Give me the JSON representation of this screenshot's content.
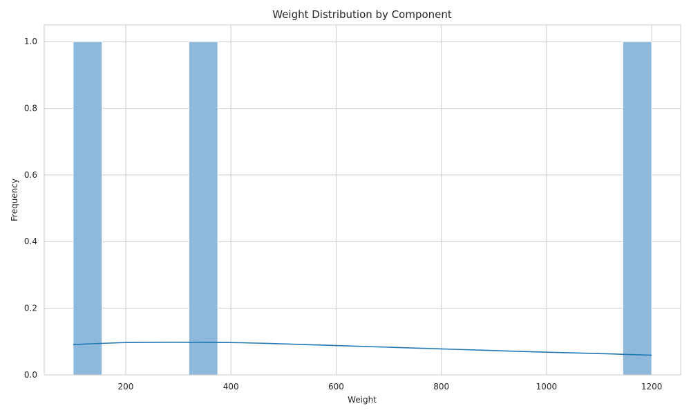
{
  "chart_data": {
    "type": "bar",
    "title": "Weight Distribution by Component",
    "xlabel": "Weight",
    "ylabel": "Frequency",
    "xlim": [
      45,
      1255
    ],
    "ylim": [
      0,
      1.05
    ],
    "x_ticks": [
      200,
      400,
      600,
      800,
      1000,
      1200
    ],
    "y_ticks": [
      0.0,
      0.2,
      0.4,
      0.6,
      0.8,
      1.0
    ],
    "x_tick_labels": [
      "200",
      "400",
      "600",
      "800",
      "1000",
      "1200"
    ],
    "y_tick_labels": [
      "0.0",
      "0.2",
      "0.4",
      "0.6",
      "0.8",
      "1.0"
    ],
    "grid": true,
    "histogram": {
      "bins": [
        {
          "x0": 100,
          "x1": 155,
          "count": 1
        },
        {
          "x0": 320,
          "x1": 375,
          "count": 1
        },
        {
          "x0": 1145,
          "x1": 1200,
          "count": 1
        }
      ],
      "color": "#8fb9db"
    },
    "kde_curve": {
      "x": [
        100,
        200,
        300,
        400,
        500,
        600,
        700,
        800,
        900,
        1000,
        1100,
        1200
      ],
      "y": [
        0.091,
        0.097,
        0.098,
        0.097,
        0.093,
        0.088,
        0.083,
        0.078,
        0.073,
        0.068,
        0.064,
        0.059
      ],
      "color": "#1f77b4"
    }
  }
}
